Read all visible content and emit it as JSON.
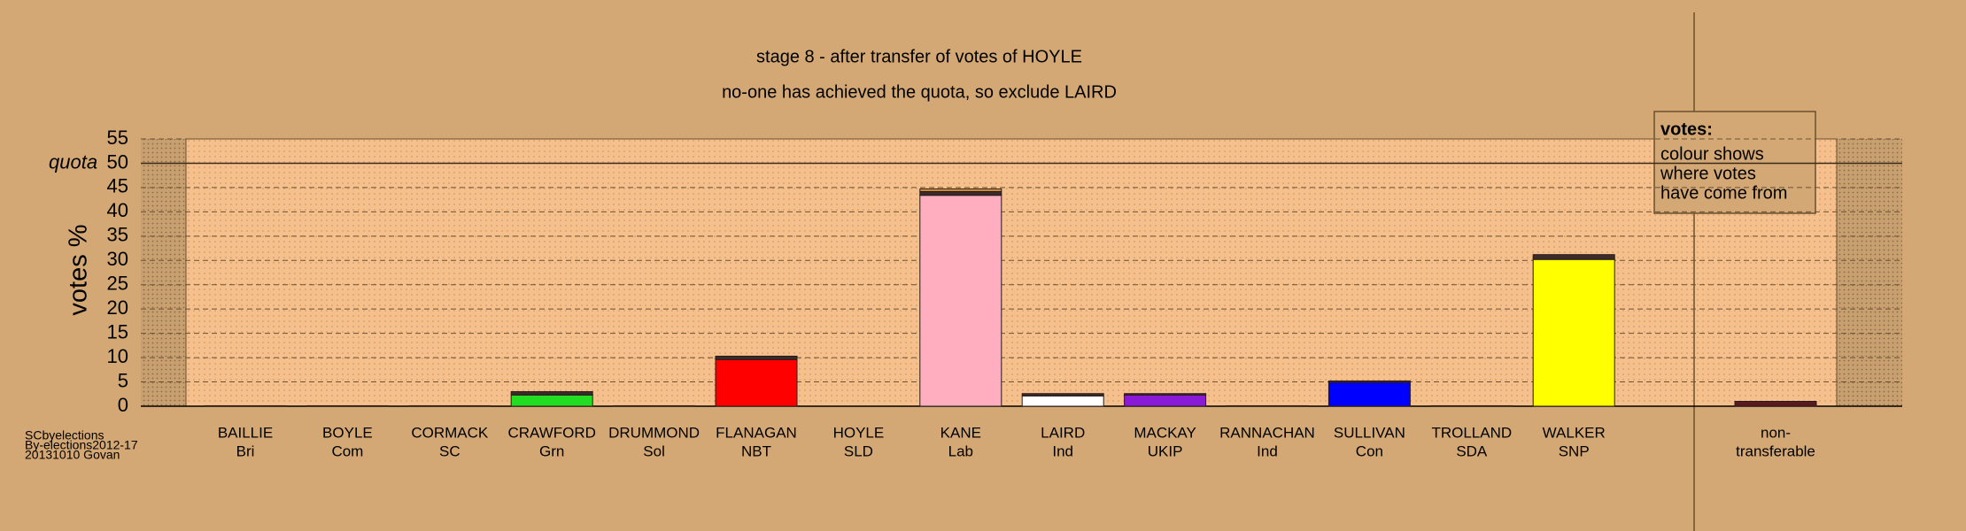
{
  "chart_data": {
    "type": "stacked-bar",
    "title": "stage 8 - after transfer of votes of HOYLE",
    "subtitle": "no-one has achieved the quota, so exclude LAIRD",
    "ylabel": "votes %",
    "categories": [
      "BAILLIE",
      "BOYLE",
      "CORMACK",
      "CRAWFORD",
      "DRUMMOND",
      "FLANAGAN",
      "HOYLE",
      "KANE",
      "LAIRD",
      "MACKAY",
      "RANNACHAN",
      "SULLIVAN",
      "TROLLAND",
      "WALKER",
      "non-"
    ],
    "parties": [
      "Bri",
      "Com",
      "SC",
      "Grn",
      "Sol",
      "NBT",
      "SLD",
      "Lab",
      "Ind",
      "UKIP",
      "Ind",
      "Con",
      "SDA",
      "SNP",
      "transferable"
    ],
    "series": [
      {
        "colors": [
          "#888888",
          "#cc0000",
          "#888888",
          "#22dd22",
          "#888888",
          "#ff0000",
          "#ffa500",
          "#ffaec0",
          "#ffffff",
          "#8a1ad6",
          "#888888",
          "#0000ff",
          "#888888",
          "#ffff00",
          "#5a1a20"
        ],
        "values": [
          0,
          0,
          0,
          2.3,
          0,
          9.6,
          0,
          43.4,
          2.1,
          2.3,
          0,
          4.9,
          0,
          30.2,
          1.0
        ]
      },
      {
        "color": "#3b2b2b",
        "values": [
          0.1,
          0.1,
          0.1,
          0.7,
          0.1,
          0.7,
          0,
          0.8,
          0.5,
          0.3,
          0.1,
          0.3,
          0.1,
          1.0,
          0
        ]
      },
      {
        "color": "#e8a040",
        "values": [
          0,
          0,
          0,
          0,
          0,
          0,
          0,
          0.5,
          0,
          0,
          0,
          0,
          0,
          0,
          0
        ]
      }
    ],
    "ylim": [
      0,
      55
    ],
    "yticks": [
      0,
      5,
      10,
      15,
      20,
      25,
      30,
      35,
      40,
      45,
      50,
      55
    ],
    "quota": {
      "value": 50,
      "label": "quota"
    },
    "grid": true,
    "annotation": [
      "votes:",
      "colour shows",
      "where votes",
      "have come from"
    ],
    "footnote": [
      "SCbyelections",
      "By-elections2012-17",
      "20131010 Govan"
    ]
  }
}
